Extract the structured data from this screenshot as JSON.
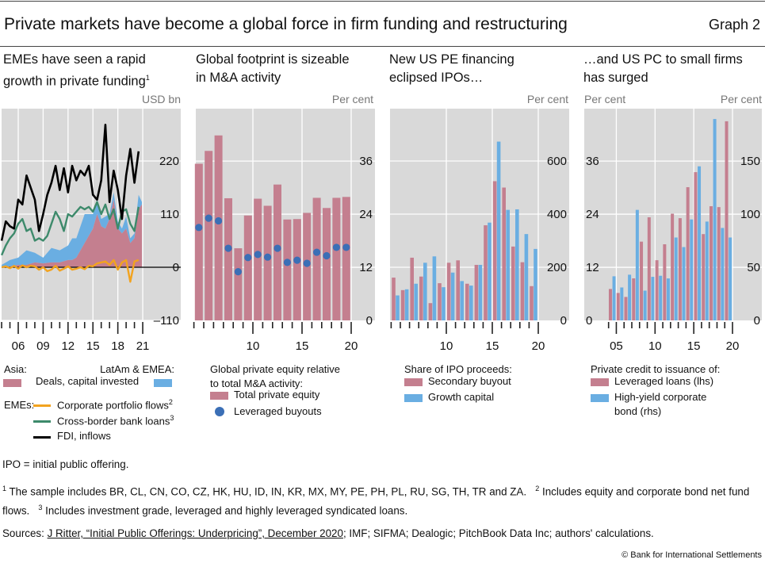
{
  "header": {
    "title": "Private markets have become a global force in firm funding and restructuring",
    "graph_no": "Graph 2"
  },
  "panels": [
    {
      "title_l1": "EMEs have seen a rapid",
      "title_l2": "growth in private funding",
      "title_sup": "1",
      "unit": "USD bn",
      "legend": {
        "asia": "Asia:",
        "latam": "LatAm & EMEA:",
        "deals": "Deals, capital invested",
        "emes": "EMEs:",
        "portfolio": "Corporate portfolio flows",
        "portfolio_sup": "2",
        "bank": "Cross-border bank loans",
        "bank_sup": "3",
        "fdi": "FDI, inflows"
      }
    },
    {
      "title_l1": "Global footprint is sizeable",
      "title_l2": "in M&A activity",
      "unit": "Per cent",
      "legend": {
        "head1": "Global private equity relative",
        "head2": "to total M&A activity:",
        "total": "Total private equity",
        "lbo": "Leveraged buyouts"
      }
    },
    {
      "title_l1": "New US PE financing",
      "title_l2": "eclipsed IPOs…",
      "unit": "Per cent",
      "legend": {
        "head": "Share of IPO proceeds:",
        "secondary": "Secondary buyout",
        "growth": "Growth capital"
      }
    },
    {
      "title_l1": "…and US PC to small firms",
      "title_l2": "has surged",
      "unit_left": "Per cent",
      "unit_right": "Per cent",
      "legend": {
        "head": "Private credit to issuance of:",
        "loans": "Leveraged loans (lhs)",
        "hy1": "High-yield corporate",
        "hy2": "bond (rhs)"
      }
    }
  ],
  "footer": {
    "abbrev": "IPO = initial public offering.",
    "fn1_mark": "1",
    "fn1": " The sample includes BR, CL, CN, CO, CZ, HK, HU, ID, IN, KR, MX, MY, PE, PH, PL, RU, SG, TH, TR and ZA.",
    "fn2_mark": "2",
    "fn2": " Includes equity and corporate bond net fund flows.",
    "fn3_mark": "3",
    "fn3": " Includes investment grade, leveraged and highly leveraged syndicated loans.",
    "sources_prefix": "Sources: ",
    "sources_link": "J Ritter, “Initial Public Offerings: Underpricing”, December 2020",
    "sources_rest": "; IMF; SIFMA; Dealogic; PitchBook Data Inc; authors' calculations.",
    "copyright": "© Bank for International Settlements"
  },
  "colors": {
    "bg": "#d9d9d9",
    "red": "#c47f8f",
    "blue": "#6aaee2",
    "dot": "#3b6fb6",
    "green": "#3d8a6b",
    "orange": "#f2a31f",
    "black": "#000000"
  },
  "chart_data": [
    {
      "type": "area+line",
      "title": "EMEs have seen a rapid growth in private funding",
      "ylabel": "USD bn",
      "ylim": [
        -110,
        330
      ],
      "yticks": [
        -110,
        0,
        110,
        220
      ],
      "xticks": [
        {
          "v": 2006,
          "label": "06"
        },
        {
          "v": 2009,
          "label": "09"
        },
        {
          "v": 2012,
          "label": "12"
        },
        {
          "v": 2015,
          "label": "15"
        },
        {
          "v": 2018,
          "label": "18"
        },
        {
          "v": 2021,
          "label": "21"
        }
      ],
      "area_x": [
        2004,
        2005,
        2006,
        2007,
        2008,
        2009,
        2010,
        2011,
        2012,
        2012.5,
        2013,
        2014,
        2015,
        2015.5,
        2016,
        2016.5,
        2017,
        2017.5,
        2018,
        2018.5,
        2019,
        2019.5,
        2020,
        2020.5,
        2020.9
      ],
      "areas": [
        {
          "name": "Asia: Deals, capital invested",
          "values": [
            0,
            2,
            5,
            5,
            10,
            8,
            10,
            10,
            15,
            15,
            20,
            50,
            80,
            110,
            85,
            80,
            100,
            140,
            80,
            70,
            80,
            50,
            60,
            120,
            130
          ]
        },
        {
          "name": "LatAm & EMEA: Deals, capital invested",
          "values": [
            5,
            13,
            15,
            30,
            20,
            12,
            30,
            25,
            30,
            45,
            40,
            60,
            30,
            30,
            15,
            25,
            10,
            15,
            15,
            10,
            25,
            10,
            10,
            30,
            5
          ]
        }
      ],
      "line_x_start": 2004,
      "line_x_step": 0.5,
      "lines": [
        {
          "name": "Corporate portfolio flows",
          "values": [
            0,
            2,
            -2,
            3,
            -3,
            4,
            0,
            3,
            2,
            -5,
            0,
            -8,
            -5,
            3,
            -7,
            -3,
            2,
            -5,
            -3,
            0,
            -4,
            3,
            2,
            8,
            10,
            12,
            5,
            15,
            -5,
            10,
            15,
            -30,
            12,
            15
          ]
        },
        {
          "name": "Cross-border bank loans",
          "values": [
            25,
            45,
            60,
            70,
            90,
            100,
            75,
            80,
            55,
            60,
            55,
            65,
            90,
            115,
            100,
            75,
            110,
            105,
            115,
            125,
            120,
            125,
            115,
            135,
            110,
            130,
            100,
            120,
            80,
            115,
            120,
            90,
            75,
            125
          ]
        },
        {
          "name": "FDI, inflows",
          "values": [
            55,
            95,
            85,
            80,
            140,
            130,
            190,
            165,
            140,
            75,
            110,
            150,
            175,
            210,
            160,
            205,
            155,
            210,
            180,
            200,
            190,
            210,
            150,
            140,
            180,
            295,
            135,
            200,
            160,
            100,
            190,
            245,
            175,
            240
          ]
        }
      ]
    },
    {
      "type": "bar+scatter",
      "title": "Global footprint is sizeable in M&A activity",
      "ylabel": "Per cent",
      "ylim": [
        0,
        48
      ],
      "yticks": [
        0,
        12,
        24,
        36
      ],
      "xticks": [
        {
          "v": 2010,
          "label": "10"
        },
        {
          "v": 2015,
          "label": "15"
        },
        {
          "v": 2020,
          "label": "20"
        }
      ],
      "categories": [
        2005,
        2006,
        2007,
        2008,
        2009,
        2010,
        2011,
        2012,
        2013,
        2014,
        2015,
        2016,
        2017,
        2018,
        2019,
        2020
      ],
      "series": [
        {
          "name": "Total private equity",
          "type": "bar",
          "values": [
            35.4,
            38.3,
            41.8,
            27.6,
            16.3,
            23.7,
            27.5,
            25.9,
            30.7,
            22.8,
            22.9,
            24.3,
            27.7,
            25.4,
            27.7,
            27.9
          ]
        },
        {
          "name": "Leveraged buyouts",
          "type": "scatter",
          "values": [
            21.0,
            23.1,
            22.5,
            16.3,
            11.0,
            14.2,
            14.9,
            14.3,
            16.3,
            13.1,
            13.6,
            12.9,
            15.4,
            14.6,
            16.5,
            16.5
          ]
        }
      ]
    },
    {
      "type": "bar",
      "title": "New US PE financing eclipsed IPOs…",
      "ylabel": "Per cent",
      "ylim": [
        0,
        800
      ],
      "yticks": [
        0,
        200,
        400,
        600
      ],
      "xticks": [
        {
          "v": 2010,
          "label": "10"
        },
        {
          "v": 2015,
          "label": "15"
        },
        {
          "v": 2020,
          "label": "20"
        }
      ],
      "categories": [
        2005,
        2006,
        2007,
        2008,
        2009,
        2010,
        2011,
        2012,
        2013,
        2014,
        2015,
        2016,
        2017,
        2018,
        2019,
        2020
      ],
      "series": [
        {
          "name": "Secondary buyout",
          "values": [
            161,
            114,
            236,
            165,
            65,
            140,
            217,
            226,
            138,
            209,
            358,
            524,
            500,
            278,
            219,
            129
          ]
        },
        {
          "name": "Growth capital",
          "values": [
            94,
            117,
            138,
            217,
            241,
            125,
            180,
            148,
            131,
            209,
            368,
            673,
            416,
            418,
            325,
            269
          ]
        }
      ]
    },
    {
      "type": "bar",
      "title": "…and US PC to small firms has surged",
      "ylabel_left": "Per cent",
      "ylabel_right": "Per cent",
      "ylim_left": [
        0,
        48
      ],
      "ylim_right": [
        0,
        200
      ],
      "yticks_left": [
        0,
        12,
        24,
        36
      ],
      "yticks_right": [
        0,
        50,
        100,
        150
      ],
      "xticks": [
        {
          "v": 2005,
          "label": "05"
        },
        {
          "v": 2010,
          "label": "10"
        },
        {
          "v": 2015,
          "label": "15"
        },
        {
          "v": 2020,
          "label": "20"
        }
      ],
      "categories": [
        2005,
        2006,
        2007,
        2008,
        2009,
        2010,
        2011,
        2012,
        2013,
        2014,
        2015,
        2016,
        2017,
        2018,
        2019,
        2020
      ],
      "series": [
        {
          "name": "Leveraged loans (lhs)",
          "axis": "left",
          "values": [
            7.1,
            6.2,
            5.3,
            9.5,
            17.8,
            23.3,
            13.6,
            17.2,
            24.1,
            23.1,
            30.1,
            33.5,
            19.5,
            25.8,
            25.6,
            45.0
          ]
        },
        {
          "name": "High-yield corporate bond (rhs)",
          "axis": "right",
          "values": [
            41.5,
            31,
            43,
            104,
            28,
            41,
            42,
            39.5,
            78,
            69,
            95,
            145,
            93,
            189.5,
            87,
            78
          ]
        }
      ]
    }
  ]
}
